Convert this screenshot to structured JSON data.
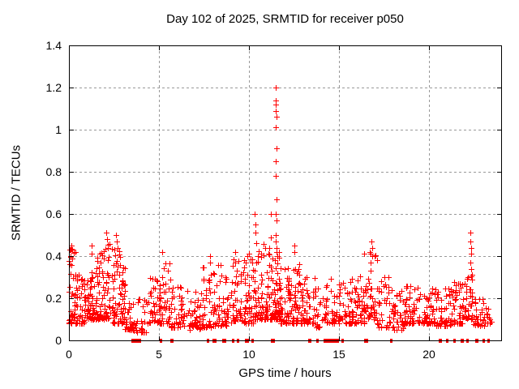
{
  "title": "Day 102 of 2025, SRMTID for receiver p050",
  "chart_data": {
    "type": "scatter",
    "title": "Day 102 of 2025, SRMTID for receiver p050",
    "xlabel": "GPS time / hours",
    "ylabel": "SRMTID / TECUs",
    "xlim": [
      0,
      24
    ],
    "ylim": [
      0,
      1.4
    ],
    "xticks": {
      "values": [
        0,
        5,
        10,
        15,
        20
      ],
      "labels": [
        "0",
        "5",
        "10",
        "15",
        "20"
      ]
    },
    "yticks": {
      "values": [
        0,
        0.2,
        0.4,
        0.6,
        0.8,
        1.0,
        1.2,
        1.4
      ],
      "labels": [
        "0",
        "0.2",
        "0.4",
        "0.6",
        "0.8",
        "1",
        "1.2",
        "1.4"
      ]
    },
    "grid": {
      "show": true,
      "color": "#999999",
      "dash": "3,3"
    },
    "axis_color": "#000000",
    "background": "#ffffff",
    "marker": {
      "shape": "plus",
      "color": "#ff0000",
      "size": 7
    },
    "spike_points": [
      [
        11.48,
        1.2
      ],
      [
        11.5,
        1.14
      ],
      [
        11.49,
        1.12
      ],
      [
        11.5,
        1.09
      ],
      [
        11.51,
        1.06
      ],
      [
        11.49,
        1.01
      ],
      [
        11.52,
        0.91
      ],
      [
        11.5,
        0.85
      ],
      [
        11.49,
        0.78
      ],
      [
        11.51,
        0.67
      ],
      [
        11.47,
        0.6
      ],
      [
        11.53,
        0.57
      ],
      [
        11.5,
        0.5
      ],
      [
        11.46,
        0.47
      ],
      [
        11.54,
        0.44
      ],
      [
        11.55,
        0.4
      ],
      [
        11.44,
        0.38
      ]
    ],
    "outlier_points": [
      [
        0.08,
        0.43
      ],
      [
        0.1,
        0.4
      ],
      [
        0.12,
        0.45
      ],
      [
        1.25,
        0.45
      ],
      [
        1.27,
        0.41
      ],
      [
        2.08,
        0.51
      ],
      [
        2.12,
        0.48
      ],
      [
        2.15,
        0.44
      ],
      [
        2.6,
        0.5
      ],
      [
        2.64,
        0.47
      ],
      [
        2.68,
        0.44
      ],
      [
        5.18,
        0.42
      ],
      [
        7.82,
        0.4
      ],
      [
        7.85,
        0.37
      ],
      [
        9.22,
        0.42
      ],
      [
        10.0,
        0.41
      ],
      [
        10.33,
        0.6
      ],
      [
        10.35,
        0.55
      ],
      [
        10.36,
        0.51
      ],
      [
        10.4,
        0.46
      ],
      [
        11.2,
        0.6
      ],
      [
        11.23,
        0.49
      ],
      [
        12.5,
        0.45
      ],
      [
        12.53,
        0.42
      ],
      [
        16.4,
        0.41
      ],
      [
        16.8,
        0.47
      ],
      [
        16.84,
        0.44
      ],
      [
        22.28,
        0.51
      ],
      [
        22.3,
        0.47
      ],
      [
        22.32,
        0.44
      ],
      [
        22.34,
        0.41
      ],
      [
        22.3,
        0.37
      ],
      [
        22.33,
        0.34
      ],
      [
        22.36,
        0.31
      ]
    ],
    "band_clusters": [
      {
        "x0": 0.0,
        "x1": 0.35,
        "n": 42,
        "ymin": 0.08,
        "ymax": 0.44
      },
      {
        "x0": 0.35,
        "x1": 1.1,
        "n": 58,
        "ymin": 0.08,
        "ymax": 0.32
      },
      {
        "x0": 1.0,
        "x1": 1.6,
        "n": 48,
        "ymin": 0.1,
        "ymax": 0.4
      },
      {
        "x0": 1.6,
        "x1": 2.4,
        "n": 68,
        "ymin": 0.1,
        "ymax": 0.46
      },
      {
        "x0": 2.4,
        "x1": 3.1,
        "n": 68,
        "ymin": 0.08,
        "ymax": 0.44
      },
      {
        "x0": 3.1,
        "x1": 3.6,
        "n": 32,
        "ymin": 0.05,
        "ymax": 0.24
      },
      {
        "x0": 3.6,
        "x1": 4.3,
        "n": 26,
        "ymin": 0.04,
        "ymax": 0.2
      },
      {
        "x0": 4.3,
        "x1": 5.1,
        "n": 42,
        "ymin": 0.08,
        "ymax": 0.3
      },
      {
        "x0": 5.0,
        "x1": 5.6,
        "n": 38,
        "ymin": 0.08,
        "ymax": 0.37
      },
      {
        "x0": 5.6,
        "x1": 6.4,
        "n": 44,
        "ymin": 0.06,
        "ymax": 0.26
      },
      {
        "x0": 6.4,
        "x1": 7.4,
        "n": 48,
        "ymin": 0.05,
        "ymax": 0.24
      },
      {
        "x0": 7.4,
        "x1": 8.1,
        "n": 42,
        "ymin": 0.06,
        "ymax": 0.36
      },
      {
        "x0": 8.1,
        "x1": 8.9,
        "n": 48,
        "ymin": 0.07,
        "ymax": 0.38
      },
      {
        "x0": 8.9,
        "x1": 9.6,
        "n": 44,
        "ymin": 0.08,
        "ymax": 0.4
      },
      {
        "x0": 9.6,
        "x1": 10.3,
        "n": 48,
        "ymin": 0.08,
        "ymax": 0.42
      },
      {
        "x0": 10.3,
        "x1": 10.8,
        "n": 44,
        "ymin": 0.1,
        "ymax": 0.44
      },
      {
        "x0": 10.8,
        "x1": 11.3,
        "n": 44,
        "ymin": 0.1,
        "ymax": 0.48
      },
      {
        "x0": 11.3,
        "x1": 11.75,
        "n": 58,
        "ymin": 0.1,
        "ymax": 0.42
      },
      {
        "x0": 11.75,
        "x1": 12.4,
        "n": 48,
        "ymin": 0.08,
        "ymax": 0.35
      },
      {
        "x0": 12.4,
        "x1": 13.0,
        "n": 48,
        "ymin": 0.08,
        "ymax": 0.38
      },
      {
        "x0": 13.0,
        "x1": 13.7,
        "n": 42,
        "ymin": 0.08,
        "ymax": 0.3
      },
      {
        "x0": 13.7,
        "x1": 14.4,
        "n": 32,
        "ymin": 0.06,
        "ymax": 0.28
      },
      {
        "x0": 14.4,
        "x1": 15.2,
        "n": 38,
        "ymin": 0.08,
        "ymax": 0.3
      },
      {
        "x0": 15.2,
        "x1": 16.0,
        "n": 48,
        "ymin": 0.08,
        "ymax": 0.3
      },
      {
        "x0": 16.0,
        "x1": 16.6,
        "n": 38,
        "ymin": 0.08,
        "ymax": 0.33
      },
      {
        "x0": 16.6,
        "x1": 17.1,
        "n": 34,
        "ymin": 0.1,
        "ymax": 0.42
      },
      {
        "x0": 17.1,
        "x1": 18.0,
        "n": 44,
        "ymin": 0.06,
        "ymax": 0.3
      },
      {
        "x0": 18.0,
        "x1": 18.7,
        "n": 38,
        "ymin": 0.05,
        "ymax": 0.25
      },
      {
        "x0": 18.7,
        "x1": 19.5,
        "n": 48,
        "ymin": 0.08,
        "ymax": 0.26
      },
      {
        "x0": 19.5,
        "x1": 20.3,
        "n": 48,
        "ymin": 0.08,
        "ymax": 0.25
      },
      {
        "x0": 20.3,
        "x1": 21.2,
        "n": 52,
        "ymin": 0.07,
        "ymax": 0.26
      },
      {
        "x0": 21.2,
        "x1": 21.9,
        "n": 44,
        "ymin": 0.08,
        "ymax": 0.28
      },
      {
        "x0": 21.9,
        "x1": 22.45,
        "n": 36,
        "ymin": 0.1,
        "ymax": 0.31
      },
      {
        "x0": 22.45,
        "x1": 23.1,
        "n": 30,
        "ymin": 0.07,
        "ymax": 0.2
      },
      {
        "x0": 23.1,
        "x1": 23.45,
        "n": 14,
        "ymin": 0.08,
        "ymax": 0.18
      }
    ],
    "zero_runs": [
      {
        "x0": 3.45,
        "x1": 4.0
      },
      {
        "x0": 5.05,
        "x1": 5.15
      },
      {
        "x0": 5.65,
        "x1": 5.8
      },
      {
        "x0": 7.65,
        "x1": 7.75
      },
      {
        "x0": 7.95,
        "x1": 8.2
      },
      {
        "x0": 8.5,
        "x1": 8.75
      },
      {
        "x0": 9.05,
        "x1": 9.15
      },
      {
        "x0": 9.3,
        "x1": 9.4
      },
      {
        "x0": 9.75,
        "x1": 10.0
      },
      {
        "x0": 10.15,
        "x1": 10.25
      },
      {
        "x0": 11.2,
        "x1": 11.45
      },
      {
        "x0": 13.3,
        "x1": 13.45
      },
      {
        "x0": 13.75,
        "x1": 13.85
      },
      {
        "x0": 14.15,
        "x1": 15.0
      },
      {
        "x0": 15.15,
        "x1": 15.25
      },
      {
        "x0": 16.4,
        "x1": 16.6
      },
      {
        "x0": 17.85,
        "x1": 17.95
      },
      {
        "x0": 20.55,
        "x1": 20.7
      },
      {
        "x0": 20.95,
        "x1": 21.05
      },
      {
        "x0": 21.35,
        "x1": 21.5
      },
      {
        "x0": 21.75,
        "x1": 21.95
      },
      {
        "x0": 22.05,
        "x1": 22.2
      },
      {
        "x0": 22.55,
        "x1": 22.75
      },
      {
        "x0": 22.95,
        "x1": 23.1
      },
      {
        "x0": 23.25,
        "x1": 23.35
      }
    ]
  }
}
